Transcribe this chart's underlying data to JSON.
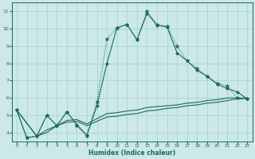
{
  "xlabel": "Humidex (Indice chaleur)",
  "xlim": [
    -0.5,
    23.5
  ],
  "ylim": [
    3.5,
    11.5
  ],
  "yticks": [
    4,
    5,
    6,
    7,
    8,
    9,
    10,
    11
  ],
  "xticks": [
    0,
    1,
    2,
    3,
    4,
    5,
    6,
    7,
    8,
    9,
    10,
    11,
    12,
    13,
    14,
    15,
    16,
    17,
    18,
    19,
    20,
    21,
    22,
    23
  ],
  "bg_color": "#cce8e8",
  "grid_color": "#aad4d4",
  "line_color": "#1a6b5a",
  "line1_x": [
    0,
    1,
    2,
    3,
    4,
    5,
    6,
    7,
    8,
    9,
    10,
    11,
    12,
    13,
    14,
    15,
    16,
    17,
    18,
    19,
    20,
    21,
    22,
    23
  ],
  "line1_y": [
    5.3,
    3.7,
    3.8,
    5.0,
    4.4,
    5.2,
    4.4,
    3.8,
    5.8,
    9.4,
    10.05,
    10.25,
    9.4,
    11.0,
    10.25,
    10.15,
    9.0,
    8.15,
    7.7,
    7.25,
    6.85,
    6.7,
    6.0,
    5.95
  ],
  "line2_x": [
    0,
    1,
    2,
    3,
    4,
    5,
    6,
    7,
    8,
    9,
    10,
    11,
    12,
    13,
    14,
    15,
    16,
    17,
    18,
    19,
    20,
    21,
    22,
    23
  ],
  "line2_y": [
    5.3,
    3.7,
    3.8,
    5.0,
    4.4,
    5.2,
    4.45,
    3.85,
    5.55,
    8.0,
    10.05,
    10.25,
    9.35,
    10.9,
    10.2,
    10.1,
    8.6,
    8.15,
    7.6,
    7.25,
    6.8,
    6.55,
    6.35,
    5.95
  ],
  "line3_x": [
    0,
    2,
    3,
    4,
    5,
    6,
    7,
    8,
    9,
    10,
    11,
    12,
    13,
    14,
    15,
    16,
    17,
    18,
    19,
    20,
    21,
    22,
    23
  ],
  "line3_y": [
    5.3,
    3.8,
    4.15,
    4.4,
    4.7,
    4.75,
    4.5,
    4.8,
    5.1,
    5.15,
    5.25,
    5.3,
    5.45,
    5.5,
    5.55,
    5.6,
    5.7,
    5.75,
    5.85,
    5.9,
    6.0,
    6.0,
    6.0
  ],
  "line4_x": [
    0,
    2,
    3,
    4,
    5,
    6,
    7,
    8,
    9,
    10,
    11,
    12,
    13,
    14,
    15,
    16,
    17,
    18,
    19,
    20,
    21,
    22,
    23
  ],
  "line4_y": [
    5.3,
    3.8,
    4.0,
    4.4,
    4.6,
    4.65,
    4.4,
    4.65,
    4.9,
    4.95,
    5.05,
    5.1,
    5.25,
    5.3,
    5.4,
    5.45,
    5.55,
    5.6,
    5.7,
    5.75,
    5.85,
    5.95,
    5.97
  ]
}
